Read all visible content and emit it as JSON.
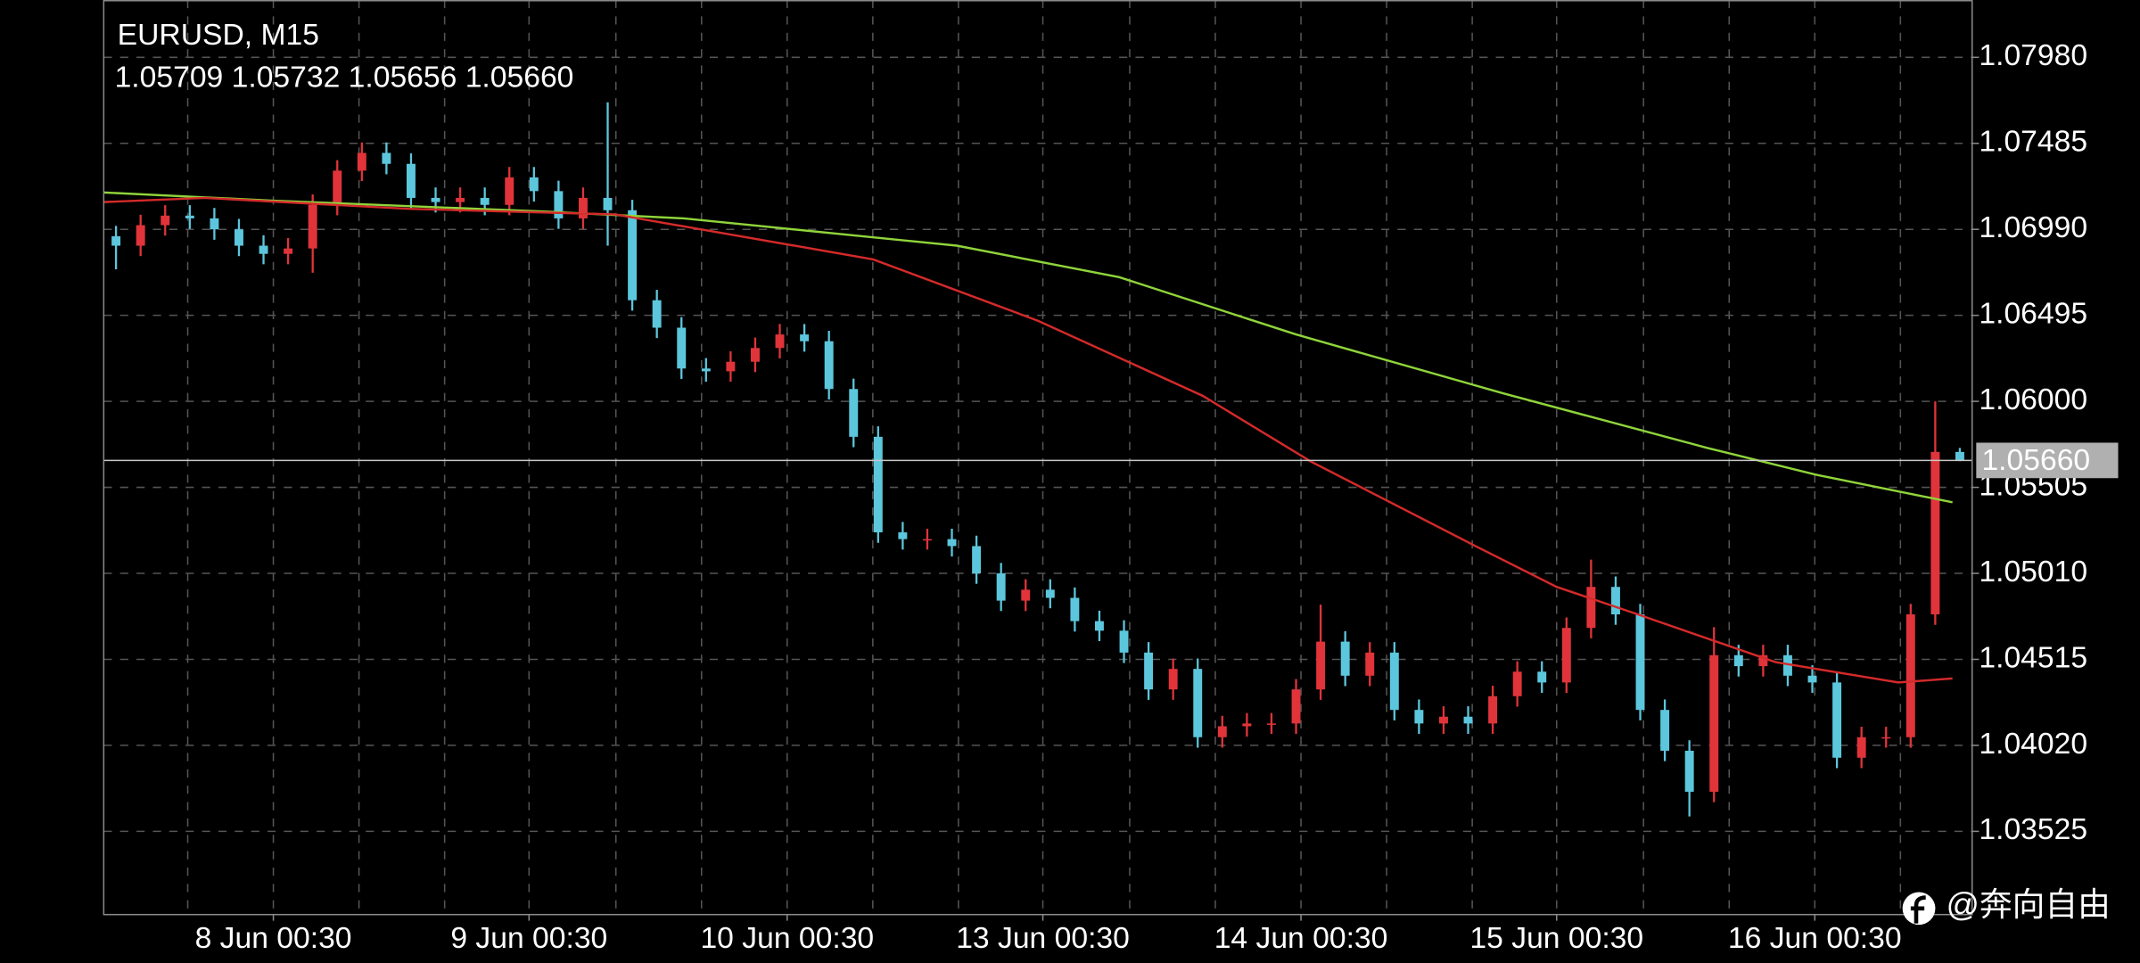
{
  "chart_data": {
    "type": "candlestick",
    "title": "EURUSD, M15",
    "ohlc_label": "1.05709 1.05732 1.05656 1.05660",
    "watermark": "@奔向自由",
    "up_color": "#e0343a",
    "down_color": "#5cc6dc",
    "grid": true,
    "xlim": [
      0,
      76
    ],
    "xticks": [
      {
        "value": 6.9,
        "label": "8 Jun 00:30"
      },
      {
        "value": 17.3,
        "label": "9 Jun 00:30"
      },
      {
        "value": 27.8,
        "label": "10 Jun 00:30"
      },
      {
        "value": 38.2,
        "label": "13 Jun 00:30"
      },
      {
        "value": 48.7,
        "label": "14 Jun 00:30"
      },
      {
        "value": 59.1,
        "label": "15 Jun 00:30"
      },
      {
        "value": 69.6,
        "label": "16 Jun 00:30"
      }
    ],
    "ylim": [
      1.0305,
      1.0831
    ],
    "yticks": [
      {
        "value": 1.0798,
        "label": "1.07980"
      },
      {
        "value": 1.07485,
        "label": "1.07485"
      },
      {
        "value": 1.0699,
        "label": "1.06990"
      },
      {
        "value": 1.06495,
        "label": "1.06495"
      },
      {
        "value": 1.06,
        "label": "1.06000"
      },
      {
        "value": 1.05505,
        "label": "1.05505"
      },
      {
        "value": 1.0501,
        "label": "1.05010"
      },
      {
        "value": 1.04515,
        "label": "1.04515"
      },
      {
        "value": 1.0402,
        "label": "1.04020"
      },
      {
        "value": 1.03525,
        "label": "1.03525"
      }
    ],
    "price_line": {
      "value": 1.0566,
      "label": "1.05660"
    },
    "open": [
      1.0695,
      1.06896,
      1.07014,
      1.07069,
      1.07053,
      1.0699,
      1.06896,
      1.06849,
      1.0688,
      1.07131,
      1.07328,
      1.0743,
      1.07367,
      1.07171,
      1.07147,
      1.07171,
      1.07131,
      1.07289,
      1.0721,
      1.07053,
      1.07171,
      1.071,
      1.06582,
      1.06424,
      1.06189,
      1.06173,
      1.06228,
      1.06307,
      1.06385,
      1.06346,
      1.06071,
      1.05796,
      1.05246,
      1.05207,
      1.05207,
      1.05167,
      1.0501,
      1.04853,
      1.04916,
      1.04869,
      1.04735,
      1.0468,
      1.04554,
      1.04342,
      1.0446,
      1.04067,
      1.0413,
      1.04146,
      1.04146,
      1.04342,
      1.04617,
      1.04421,
      1.04554,
      1.04224,
      1.04146,
      1.04185,
      1.04146,
      1.04303,
      1.04444,
      1.04382,
      1.04696,
      1.04932,
      1.04774,
      1.04224,
      1.03989,
      1.03753,
      1.04539,
      1.04476,
      1.04539,
      1.04421,
      1.04382,
      1.03949,
      1.04067,
      1.04067,
      1.04774,
      1.05709
    ],
    "high": [
      1.0701,
      1.07074,
      1.07129,
      1.07129,
      1.07113,
      1.0705,
      1.06956,
      1.0694,
      1.07191,
      1.07388,
      1.0749,
      1.0749,
      1.07427,
      1.07231,
      1.07231,
      1.07231,
      1.07349,
      1.07349,
      1.0727,
      1.07231,
      1.07721,
      1.0716,
      1.06642,
      1.06484,
      1.06249,
      1.06288,
      1.06367,
      1.06445,
      1.06445,
      1.06406,
      1.06131,
      1.05856,
      1.05306,
      1.05267,
      1.05267,
      1.05227,
      1.0507,
      1.04976,
      1.04976,
      1.04929,
      1.04795,
      1.0474,
      1.04614,
      1.0452,
      1.0452,
      1.0419,
      1.04206,
      1.04206,
      1.04402,
      1.0483,
      1.04677,
      1.04614,
      1.04614,
      1.04284,
      1.04245,
      1.04245,
      1.04363,
      1.04504,
      1.04504,
      1.04756,
      1.05089,
      1.04992,
      1.04834,
      1.04284,
      1.04049,
      1.047,
      1.04599,
      1.04599,
      1.04599,
      1.04481,
      1.04442,
      1.04127,
      1.04127,
      1.04834,
      1.06,
      1.05732
    ],
    "low": [
      1.0676,
      1.06836,
      1.06954,
      1.06993,
      1.0693,
      1.06836,
      1.06789,
      1.06789,
      1.0674,
      1.07071,
      1.07268,
      1.07307,
      1.07111,
      1.07087,
      1.07087,
      1.07071,
      1.07071,
      1.0715,
      1.06993,
      1.06993,
      1.06896,
      1.06522,
      1.06364,
      1.06129,
      1.06113,
      1.06113,
      1.06168,
      1.06247,
      1.06286,
      1.06011,
      1.05736,
      1.05186,
      1.05147,
      1.05147,
      1.05107,
      1.0495,
      1.04793,
      1.04793,
      1.04809,
      1.04675,
      1.0462,
      1.04494,
      1.04282,
      1.04282,
      1.04007,
      1.04007,
      1.0407,
      1.04086,
      1.04086,
      1.04282,
      1.04361,
      1.04361,
      1.04164,
      1.04086,
      1.04086,
      1.04086,
      1.04086,
      1.04243,
      1.04322,
      1.04322,
      1.04636,
      1.04714,
      1.04164,
      1.03929,
      1.03611,
      1.03693,
      1.04416,
      1.04416,
      1.04361,
      1.04322,
      1.03889,
      1.03889,
      1.04007,
      1.04007,
      1.04714,
      1.05656
    ],
    "close": [
      1.06896,
      1.07014,
      1.07069,
      1.07053,
      1.0699,
      1.06896,
      1.06849,
      1.0688,
      1.07131,
      1.07328,
      1.0743,
      1.07367,
      1.07171,
      1.07147,
      1.07171,
      1.07131,
      1.07289,
      1.0721,
      1.07053,
      1.07171,
      1.071,
      1.06582,
      1.06424,
      1.06189,
      1.06173,
      1.06228,
      1.06307,
      1.06385,
      1.06346,
      1.06071,
      1.05796,
      1.05246,
      1.05207,
      1.05207,
      1.05167,
      1.0501,
      1.04853,
      1.04916,
      1.04869,
      1.04735,
      1.0468,
      1.04554,
      1.04342,
      1.0446,
      1.04067,
      1.0413,
      1.04146,
      1.04146,
      1.04342,
      1.04617,
      1.04421,
      1.04554,
      1.04224,
      1.04146,
      1.04185,
      1.04146,
      1.04303,
      1.04444,
      1.04382,
      1.04696,
      1.04932,
      1.04774,
      1.04224,
      1.03989,
      1.03753,
      1.04539,
      1.04476,
      1.04539,
      1.04421,
      1.04382,
      1.03949,
      1.04067,
      1.04067,
      1.04774,
      1.05709,
      1.0566
    ],
    "series": [
      {
        "color": "#8fd43a",
        "x": [
          0,
          6.9,
          18.0,
          23.6,
          34.7,
          41.3,
          48.5,
          56.9,
          65.2,
          69.7,
          75.2
        ],
        "values": [
          1.07202,
          1.07155,
          1.07092,
          1.07053,
          1.06896,
          1.06715,
          1.06385,
          1.06047,
          1.05733,
          1.05576,
          1.05419
        ]
      },
      {
        "color": "#d42a2a",
        "x": [
          0,
          4.1,
          12.4,
          20.8,
          31.3,
          38.0,
          44.7,
          49.1,
          55.8,
          59.1,
          62.4,
          68.0,
          73.0,
          75.2
        ],
        "values": [
          1.07147,
          1.07171,
          1.07108,
          1.07076,
          1.06817,
          1.06464,
          1.06032,
          1.05654,
          1.05167,
          1.04932,
          1.04774,
          1.04499,
          1.04382,
          1.04405
        ]
      }
    ]
  }
}
